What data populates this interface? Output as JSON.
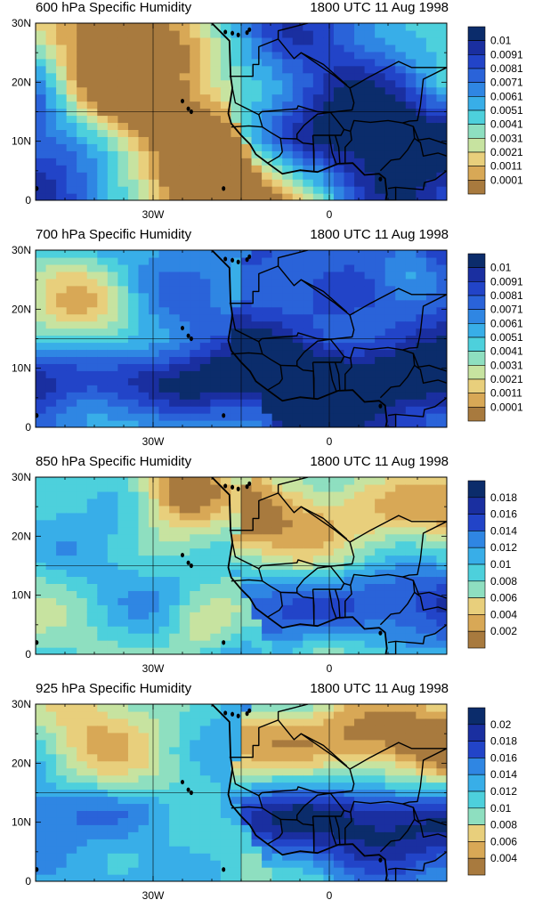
{
  "chart_data": [
    {
      "type": "heatmap",
      "title": "600 hPa Specific Humidity",
      "subtitle": "1800 UTC 11 Aug 1998",
      "xticks": [
        "30W",
        "0"
      ],
      "yticks": [
        "0",
        "10N",
        "20N",
        "30N"
      ],
      "colorbar_labels": [
        "0.01",
        "0.0091",
        "0.0081",
        "0.0071",
        "0.0061",
        "0.0051",
        "0.0041",
        "0.0031",
        "0.0021",
        "0.0011",
        "0.0001"
      ],
      "colors": [
        "#0b2c6b",
        "#1a2fa0",
        "#2244c8",
        "#2a63d9",
        "#2f86e3",
        "#38aee8",
        "#4dd0dc",
        "#8edfc0",
        "#c7e3a0",
        "#e8cf7c",
        "#d8a856",
        "#a87a3e"
      ]
    },
    {
      "type": "heatmap",
      "title": "700 hPa Specific Humidity",
      "subtitle": "1800 UTC 11 Aug 1998",
      "xticks": [
        "30W",
        "0"
      ],
      "yticks": [
        "0",
        "10N",
        "20N",
        "30N"
      ],
      "colorbar_labels": [
        "0.01",
        "0.0091",
        "0.0081",
        "0.0071",
        "0.0061",
        "0.0051",
        "0.0041",
        "0.0031",
        "0.0021",
        "0.0011",
        "0.0001"
      ],
      "colors": [
        "#0b2c6b",
        "#1a2fa0",
        "#2244c8",
        "#2a63d9",
        "#2f86e3",
        "#38aee8",
        "#4dd0dc",
        "#8edfc0",
        "#c7e3a0",
        "#e8cf7c",
        "#d8a856",
        "#a87a3e"
      ]
    },
    {
      "type": "heatmap",
      "title": "850 hPa Specific Humidity",
      "subtitle": "1800 UTC 11 Aug 1998",
      "xticks": [
        "30W",
        "0"
      ],
      "yticks": [
        "0",
        "10N",
        "20N",
        "30N"
      ],
      "colorbar_labels": [
        "0.018",
        "0.016",
        "0.014",
        "0.012",
        "0.01",
        "0.008",
        "0.006",
        "0.004",
        "0.002"
      ],
      "colors": [
        "#0b2c6b",
        "#1a2fa0",
        "#2244c8",
        "#2a63d9",
        "#2f86e3",
        "#38aee8",
        "#4dd0dc",
        "#8edfc0",
        "#c7e3a0",
        "#e8cf7c",
        "#d8a856",
        "#a87a3e"
      ]
    },
    {
      "type": "heatmap",
      "title": "925 hPa Specific Humidity",
      "subtitle": "1800 UTC 11 Aug 1998",
      "xticks": [
        "30W",
        "0"
      ],
      "yticks": [
        "0",
        "10N",
        "20N",
        "30N"
      ],
      "colorbar_labels": [
        "0.02",
        "0.018",
        "0.016",
        "0.014",
        "0.012",
        "0.01",
        "0.008",
        "0.006",
        "0.004"
      ],
      "colors": [
        "#0b2c6b",
        "#1a2fa0",
        "#2244c8",
        "#2a63d9",
        "#2f86e3",
        "#38aee8",
        "#4dd0dc",
        "#8edfc0",
        "#c7e3a0",
        "#e8cf7c",
        "#d8a856",
        "#a87a3e"
      ]
    }
  ]
}
